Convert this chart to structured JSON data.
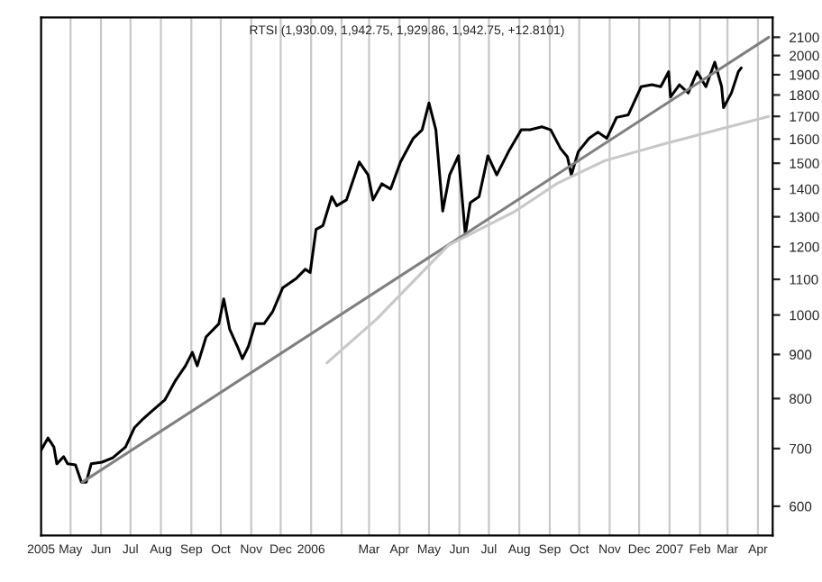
{
  "chart_data": {
    "type": "line",
    "title": "RTSI (1,930.09, 1,942.75, 1,929.86, 1,942.75, +12.8101)",
    "log": "y",
    "grid": "x",
    "xlim": [
      "2005-04-01",
      "2007-04-16"
    ],
    "xticks": [
      {
        "value": "2005-04-01",
        "label": "2005"
      },
      {
        "value": "2005-05-01",
        "label": "May"
      },
      {
        "value": "2005-06-01",
        "label": "Jun"
      },
      {
        "value": "2005-07-01",
        "label": "Jul"
      },
      {
        "value": "2005-08-01",
        "label": "Aug"
      },
      {
        "value": "2005-09-01",
        "label": "Sep"
      },
      {
        "value": "2005-10-01",
        "label": "Oct"
      },
      {
        "value": "2005-11-01",
        "label": "Nov"
      },
      {
        "value": "2005-12-01",
        "label": "Dec"
      },
      {
        "value": "2006-01-01",
        "label": "2006"
      },
      {
        "value": "2006-02-01",
        "label": null
      },
      {
        "value": "2006-03-01",
        "label": "Mar"
      },
      {
        "value": "2006-04-01",
        "label": "Apr"
      },
      {
        "value": "2006-05-01",
        "label": "May"
      },
      {
        "value": "2006-06-01",
        "label": "Jun"
      },
      {
        "value": "2006-07-01",
        "label": "Jul"
      },
      {
        "value": "2006-08-01",
        "label": "Aug"
      },
      {
        "value": "2006-09-01",
        "label": "Sep"
      },
      {
        "value": "2006-10-01",
        "label": "Oct"
      },
      {
        "value": "2006-11-01",
        "label": "Nov"
      },
      {
        "value": "2006-12-01",
        "label": "Dec"
      },
      {
        "value": "2007-01-01",
        "label": "2007"
      },
      {
        "value": "2007-02-01",
        "label": "Feb"
      },
      {
        "value": "2007-03-01",
        "label": "Mar"
      },
      {
        "value": "2007-04-01",
        "label": "Apr"
      }
    ],
    "ylim": [
      555,
      2214
    ],
    "yticks": [
      600,
      700,
      800,
      900,
      1000,
      1100,
      1200,
      1300,
      1400,
      1500,
      1600,
      1700,
      1800,
      1900,
      2000,
      2100
    ],
    "series": [
      {
        "color": "#000000",
        "x": [
          "2005-04-01",
          "2005-04-08",
          "2005-04-14",
          "2005-04-17",
          "2005-04-24",
          "2005-04-28",
          "2005-05-06",
          "2005-05-12",
          "2005-05-17",
          "2005-05-22",
          "2005-06-02",
          "2005-06-13",
          "2005-06-26",
          "2005-07-05",
          "2005-07-14",
          "2005-07-23",
          "2005-08-05",
          "2005-08-16",
          "2005-08-26",
          "2005-09-02",
          "2005-09-07",
          "2005-09-16",
          "2005-09-29",
          "2005-10-04",
          "2005-10-10",
          "2005-10-18",
          "2005-10-23",
          "2005-10-29",
          "2005-11-05",
          "2005-11-14",
          "2005-11-23",
          "2005-12-03",
          "2005-12-17",
          "2005-12-26",
          "2005-12-31",
          "2006-01-06",
          "2006-01-13",
          "2006-01-22",
          "2006-01-27",
          "2006-02-06",
          "2006-02-19",
          "2006-02-28",
          "2006-03-05",
          "2006-03-14",
          "2006-03-23",
          "2006-04-02",
          "2006-04-15",
          "2006-04-24",
          "2006-05-01",
          "2006-05-08",
          "2006-05-15",
          "2006-05-22",
          "2006-05-31",
          "2006-06-07",
          "2006-06-12",
          "2006-06-21",
          "2006-06-30",
          "2006-07-09",
          "2006-07-21",
          "2006-08-03",
          "2006-08-12",
          "2006-08-24",
          "2006-09-02",
          "2006-09-12",
          "2006-09-19",
          "2006-09-23",
          "2006-09-30",
          "2006-10-11",
          "2006-10-20",
          "2006-10-29",
          "2006-11-08",
          "2006-11-20",
          "2006-12-03",
          "2006-12-14",
          "2006-12-23",
          "2006-12-31",
          "2007-01-02",
          "2007-01-11",
          "2007-01-20",
          "2007-01-29",
          "2007-02-07",
          "2007-02-16",
          "2007-02-23",
          "2007-02-25",
          "2007-03-05",
          "2007-03-12",
          "2007-03-15"
        ],
        "values": [
          697,
          720,
          703,
          672,
          685,
          672,
          670,
          640,
          640,
          672,
          675,
          683,
          703,
          740,
          758,
          774,
          797,
          840,
          873,
          905,
          873,
          943,
          977,
          1044,
          963,
          919,
          890,
          919,
          977,
          977,
          1010,
          1075,
          1103,
          1130,
          1120,
          1257,
          1270,
          1372,
          1339,
          1360,
          1505,
          1454,
          1360,
          1420,
          1400,
          1505,
          1603,
          1640,
          1762,
          1640,
          1320,
          1454,
          1530,
          1240,
          1350,
          1372,
          1530,
          1454,
          1547,
          1640,
          1640,
          1653,
          1640,
          1560,
          1525,
          1454,
          1547,
          1603,
          1630,
          1603,
          1695,
          1707,
          1840,
          1850,
          1840,
          1915,
          1790,
          1850,
          1810,
          1915,
          1840,
          1965,
          1840,
          1740,
          1810,
          1915,
          1935
        ]
      },
      {
        "color": "#808080",
        "x": [
          "2005-05-13",
          "2007-04-12"
        ],
        "values": [
          640,
          2100
        ]
      },
      {
        "color": "#c8c8c8",
        "x": [
          "2006-01-17",
          "2006-03-09",
          "2006-04-27",
          "2006-05-21",
          "2006-07-28",
          "2006-09-08",
          "2006-10-27",
          "2006-12-27",
          "2007-02-19",
          "2007-04-12"
        ],
        "values": [
          880,
          990,
          1130,
          1205,
          1320,
          1420,
          1510,
          1580,
          1640,
          1700
        ]
      }
    ]
  }
}
